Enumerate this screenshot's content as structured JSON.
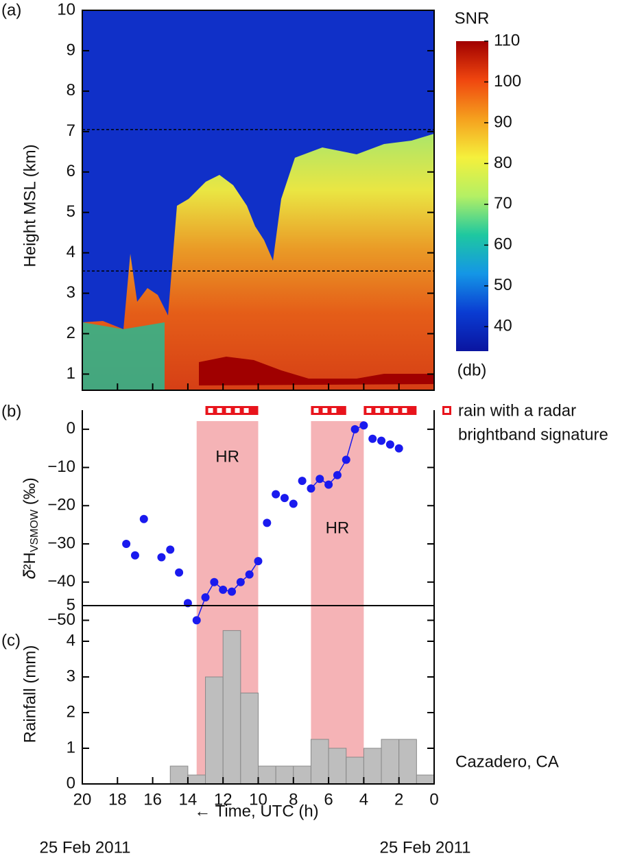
{
  "chart_data": [
    {
      "type": "heatmap",
      "panel_label": "(a)",
      "ylabel": "Height MSL (km)",
      "xlim": [
        20,
        0
      ],
      "ylim": [
        0.6,
        10
      ],
      "yticks": [
        1,
        2,
        3,
        4,
        5,
        6,
        7,
        8,
        9,
        10
      ],
      "reference_lines": [
        7.05,
        3.55
      ],
      "colorbar": {
        "title": "SNR",
        "unit": "(db)",
        "lim": [
          34,
          110
        ],
        "ticks": [
          40,
          50,
          60,
          70,
          80,
          90,
          100,
          110
        ],
        "colors": [
          "#0a14a0",
          "#0a3cd2",
          "#1496e6",
          "#1ec8a0",
          "#b4f064",
          "#f5f03c",
          "#f5a01e",
          "#f0460f",
          "#a00000"
        ]
      }
    },
    {
      "type": "scatter",
      "panel_label": "(b)",
      "ylabel": {
        "main": "𝛿²H",
        "sub": "VSMOW",
        "unit": " (‰)"
      },
      "xlim": [
        20,
        0
      ],
      "ylim": [
        -51,
        5
      ],
      "yticks": [
        0,
        {
          "value": -10,
          "label": "−10"
        },
        {
          "value": -20,
          "label": "−20"
        },
        {
          "value": -30,
          "label": "−30"
        },
        {
          "value": -40,
          "label": "−40"
        },
        {
          "value": -50,
          "label": "−50"
        }
      ],
      "x": [
        17.5,
        17,
        16.5,
        15.5,
        15,
        14.5,
        14,
        13.5,
        13,
        12.5,
        12,
        11.5,
        11,
        10.5,
        10,
        9.5,
        9,
        8.5,
        8,
        7.5,
        7,
        6.5,
        6,
        5.5,
        5,
        4.5,
        4,
        3.5,
        3,
        2.5,
        2
      ],
      "values": [
        -30,
        -33,
        -23.5,
        -33.5,
        -31.5,
        -37.5,
        -45.5,
        -50,
        -44,
        -40,
        -42,
        -42.5,
        -40,
        -38,
        -34.5,
        -24.5,
        -17,
        -18,
        -19.5,
        -13.5,
        -15.5,
        -13,
        -14.5,
        -12,
        -8,
        0,
        1,
        -2.5,
        -3,
        -4,
        -5
      ],
      "color": "#1a1aee",
      "shaded_periods": [
        {
          "from": 13.5,
          "to": 10,
          "label": "HR"
        },
        {
          "from": 7,
          "to": 4,
          "label": "HR"
        }
      ],
      "shade_color": "#f5b3b6",
      "brightband": {
        "periods": [
          [
            13,
            10
          ],
          [
            7,
            5
          ],
          [
            4,
            1
          ]
        ],
        "color": "#e8141c",
        "label": [
          "rain with a radar",
          "brightband signature"
        ]
      }
    },
    {
      "type": "histogram",
      "panel_label": "(c)",
      "ylabel": "Rainfall (mm)",
      "xlabel": "← Time, UTC (h)",
      "bins": [
        20,
        19,
        18,
        17,
        16,
        15,
        14,
        13,
        12,
        11,
        10,
        9,
        8,
        7,
        6,
        5,
        4,
        3,
        2,
        1,
        0
      ],
      "values": [
        0,
        0,
        0,
        0,
        0,
        0.5,
        0.25,
        3.0,
        4.3,
        2.55,
        0.5,
        0.5,
        0.5,
        1.25,
        1.0,
        0.75,
        1.0,
        1.25,
        1.25,
        0.25
      ],
      "color": "#bebebe",
      "xlim": [
        20,
        0
      ],
      "ylim": [
        0,
        5
      ],
      "yticks": [
        0,
        1,
        2,
        3,
        4,
        5
      ],
      "xticks": [
        20,
        18,
        16,
        14,
        12,
        10,
        8,
        6,
        4,
        2,
        0
      ],
      "annotation": "Cazadero, CA",
      "date_labels": [
        "25 Feb 2011",
        "25 Feb 2011"
      ]
    }
  ]
}
